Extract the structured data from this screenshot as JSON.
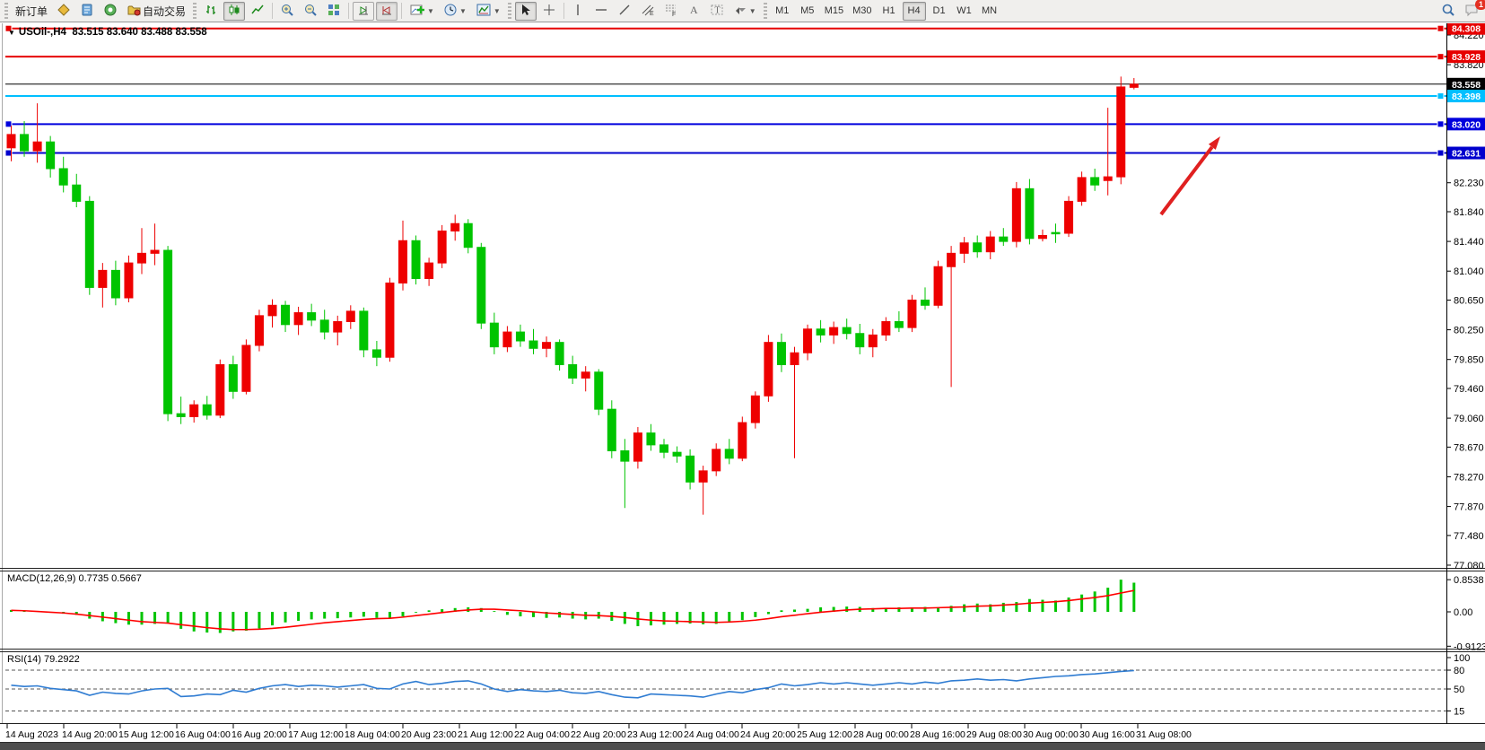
{
  "toolbar": {
    "new_order_label": "新订单",
    "autotrading_label": "自动交易",
    "timeframes": [
      "M1",
      "M5",
      "M15",
      "M30",
      "H1",
      "H4",
      "D1",
      "W1",
      "MN"
    ],
    "active_timeframe": "H4",
    "notification_count": "1"
  },
  "chart": {
    "title_symbol": "USOil-,H4",
    "title_ohlc": "83.515 83.640 83.488 83.558"
  },
  "macd_panel": {
    "label": "MACD(12,26,9) 0.7735 0.5667"
  },
  "rsi_panel": {
    "label": "RSI(14) 79.2922"
  },
  "chart_data": {
    "type": "candlestick",
    "symbol": "USOil",
    "period": "H4",
    "current_ohlc": {
      "open": 83.515,
      "high": 83.64,
      "low": 83.488,
      "close": 83.558
    },
    "up_color": "#ee0000",
    "down_color": "#00c400",
    "ylim": [
      77.08,
      84.308
    ],
    "price_axis": [
      84.22,
      83.82,
      82.23,
      81.84,
      81.44,
      81.04,
      80.65,
      80.25,
      79.85,
      79.46,
      79.06,
      78.67,
      78.27,
      77.87,
      77.48,
      77.08
    ],
    "levels": [
      {
        "price": 84.308,
        "label": "84.308",
        "color": "#e60000",
        "width": 2,
        "handle_left": true,
        "handle_right": true,
        "current": false
      },
      {
        "price": 83.928,
        "label": "83.928",
        "color": "#e60000",
        "width": 2,
        "handle_left": false,
        "handle_right": true,
        "current": false
      },
      {
        "price": 83.558,
        "label": "83.558",
        "color": "#000000",
        "width": 1,
        "handle_left": false,
        "handle_right": false,
        "current": true
      },
      {
        "price": 83.398,
        "label": "83.398",
        "color": "#00bfff",
        "width": 2,
        "handle_left": false,
        "handle_right": true,
        "current": false
      },
      {
        "price": 83.02,
        "label": "83.020",
        "color": "#0000dd",
        "width": 2,
        "handle_left": true,
        "handle_right": true,
        "current": false
      },
      {
        "price": 82.631,
        "label": "82.631",
        "color": "#0000cd",
        "width": 2,
        "handle_left": true,
        "handle_right": true,
        "current": false
      }
    ],
    "time_labels": [
      "14 Aug 2023",
      "14 Aug 20:00",
      "15 Aug 12:00",
      "16 Aug 04:00",
      "16 Aug 20:00",
      "17 Aug 12:00",
      "18 Aug 04:00",
      "20 Aug 23:00",
      "21 Aug 12:00",
      "22 Aug 04:00",
      "22 Aug 20:00",
      "23 Aug 12:00",
      "24 Aug 04:00",
      "24 Aug 20:00",
      "25 Aug 12:00",
      "28 Aug 00:00",
      "28 Aug 16:00",
      "29 Aug 08:00",
      "30 Aug 00:00",
      "30 Aug 16:00",
      "31 Aug 08:00"
    ],
    "candles": [
      [
        82.7,
        83.0,
        82.52,
        82.88
      ],
      [
        82.88,
        83.06,
        82.58,
        82.66
      ],
      [
        82.66,
        83.3,
        82.5,
        82.78
      ],
      [
        82.78,
        82.86,
        82.3,
        82.42
      ],
      [
        82.42,
        82.58,
        82.1,
        82.2
      ],
      [
        82.2,
        82.35,
        81.9,
        81.98
      ],
      [
        81.98,
        82.05,
        80.72,
        80.82
      ],
      [
        80.82,
        81.15,
        80.55,
        81.05
      ],
      [
        81.05,
        81.18,
        80.58,
        80.68
      ],
      [
        80.68,
        81.25,
        80.62,
        81.15
      ],
      [
        81.15,
        81.62,
        81.0,
        81.28
      ],
      [
        81.28,
        81.68,
        81.12,
        81.32
      ],
      [
        81.32,
        81.38,
        79.02,
        79.12
      ],
      [
        79.12,
        79.35,
        78.98,
        79.08
      ],
      [
        79.08,
        79.3,
        79.0,
        79.24
      ],
      [
        79.24,
        79.36,
        79.04,
        79.1
      ],
      [
        79.1,
        79.85,
        79.06,
        79.78
      ],
      [
        79.78,
        79.9,
        79.32,
        79.42
      ],
      [
        79.42,
        80.12,
        79.38,
        80.04
      ],
      [
        80.04,
        80.52,
        79.96,
        80.44
      ],
      [
        80.44,
        80.66,
        80.28,
        80.58
      ],
      [
        80.58,
        80.64,
        80.22,
        80.32
      ],
      [
        80.32,
        80.56,
        80.18,
        80.48
      ],
      [
        80.48,
        80.6,
        80.3,
        80.38
      ],
      [
        80.38,
        80.52,
        80.12,
        80.22
      ],
      [
        80.22,
        80.44,
        80.04,
        80.36
      ],
      [
        80.36,
        80.58,
        80.26,
        80.5
      ],
      [
        80.5,
        80.55,
        79.88,
        79.98
      ],
      [
        79.98,
        80.1,
        79.76,
        79.88
      ],
      [
        79.88,
        80.95,
        79.82,
        80.88
      ],
      [
        80.88,
        81.72,
        80.78,
        81.45
      ],
      [
        81.45,
        81.52,
        80.86,
        80.94
      ],
      [
        80.94,
        81.22,
        80.84,
        81.15
      ],
      [
        81.15,
        81.66,
        81.08,
        81.58
      ],
      [
        81.58,
        81.8,
        81.45,
        81.68
      ],
      [
        81.68,
        81.74,
        81.28,
        81.36
      ],
      [
        81.36,
        81.42,
        80.26,
        80.34
      ],
      [
        80.34,
        80.48,
        79.92,
        80.02
      ],
      [
        80.02,
        80.3,
        79.95,
        80.22
      ],
      [
        80.22,
        80.32,
        80.02,
        80.1
      ],
      [
        80.1,
        80.26,
        79.92,
        80.0
      ],
      [
        80.0,
        80.16,
        79.88,
        80.08
      ],
      [
        80.08,
        80.12,
        79.7,
        79.78
      ],
      [
        79.78,
        79.9,
        79.52,
        79.6
      ],
      [
        79.6,
        79.76,
        79.42,
        79.68
      ],
      [
        79.68,
        79.72,
        79.1,
        79.18
      ],
      [
        79.18,
        79.3,
        78.52,
        78.62
      ],
      [
        78.62,
        78.78,
        77.85,
        78.48
      ],
      [
        78.48,
        78.94,
        78.38,
        78.86
      ],
      [
        78.86,
        78.98,
        78.62,
        78.7
      ],
      [
        78.7,
        78.78,
        78.52,
        78.6
      ],
      [
        78.6,
        78.68,
        78.46,
        78.55
      ],
      [
        78.55,
        78.64,
        78.1,
        78.2
      ],
      [
        78.2,
        78.42,
        77.76,
        78.35
      ],
      [
        78.35,
        78.72,
        78.28,
        78.64
      ],
      [
        78.64,
        78.78,
        78.44,
        78.52
      ],
      [
        78.52,
        79.08,
        78.48,
        79.0
      ],
      [
        79.0,
        79.42,
        78.92,
        79.36
      ],
      [
        79.36,
        80.18,
        79.28,
        80.08
      ],
      [
        80.08,
        80.2,
        79.68,
        79.78
      ],
      [
        79.78,
        80.02,
        78.52,
        79.94
      ],
      [
        79.94,
        80.32,
        79.84,
        80.26
      ],
      [
        80.26,
        80.38,
        80.08,
        80.18
      ],
      [
        80.18,
        80.36,
        80.06,
        80.28
      ],
      [
        80.28,
        80.4,
        80.12,
        80.2
      ],
      [
        80.2,
        80.33,
        79.92,
        80.02
      ],
      [
        80.02,
        80.26,
        79.88,
        80.18
      ],
      [
        80.18,
        80.42,
        80.1,
        80.36
      ],
      [
        80.36,
        80.5,
        80.22,
        80.28
      ],
      [
        80.28,
        80.72,
        80.22,
        80.65
      ],
      [
        80.65,
        80.82,
        80.52,
        80.58
      ],
      [
        80.58,
        81.18,
        80.54,
        81.1
      ],
      [
        81.1,
        81.38,
        79.48,
        81.28
      ],
      [
        81.28,
        81.5,
        81.15,
        81.42
      ],
      [
        81.42,
        81.52,
        81.22,
        81.3
      ],
      [
        81.3,
        81.58,
        81.2,
        81.5
      ],
      [
        81.5,
        81.62,
        81.38,
        81.44
      ],
      [
        81.44,
        82.24,
        81.36,
        82.15
      ],
      [
        82.15,
        82.28,
        81.4,
        81.48
      ],
      [
        81.48,
        81.6,
        81.44,
        81.52
      ],
      [
        81.56,
        81.68,
        81.42,
        81.55
      ],
      [
        81.55,
        82.05,
        81.5,
        81.98
      ],
      [
        81.98,
        82.38,
        81.92,
        82.3
      ],
      [
        82.3,
        82.42,
        82.12,
        82.2
      ],
      [
        82.26,
        83.24,
        82.06,
        82.31
      ],
      [
        82.31,
        83.66,
        82.21,
        83.52
      ],
      [
        83.515,
        83.64,
        83.488,
        83.558
      ]
    ],
    "macd": {
      "params": "12,26,9",
      "value": 0.7735,
      "signal_value": 0.5667,
      "axis": [
        0.8538,
        0.0,
        -0.9123
      ],
      "histogram": [
        0.05,
        0.03,
        0.02,
        -0.02,
        -0.05,
        -0.08,
        -0.18,
        -0.25,
        -0.3,
        -0.34,
        -0.34,
        -0.32,
        -0.3,
        -0.45,
        -0.52,
        -0.55,
        -0.56,
        -0.52,
        -0.5,
        -0.44,
        -0.36,
        -0.28,
        -0.24,
        -0.2,
        -0.18,
        -0.17,
        -0.15,
        -0.13,
        -0.16,
        -0.18,
        -0.12,
        -0.02,
        0.04,
        0.07,
        0.1,
        0.12,
        0.1,
        0.02,
        -0.08,
        -0.12,
        -0.14,
        -0.16,
        -0.15,
        -0.18,
        -0.2,
        -0.18,
        -0.24,
        -0.32,
        -0.38,
        -0.36,
        -0.34,
        -0.32,
        -0.31,
        -0.33,
        -0.32,
        -0.26,
        -0.22,
        -0.14,
        -0.06,
        0.04,
        0.06,
        0.08,
        0.12,
        0.13,
        0.14,
        0.13,
        0.1,
        0.1,
        0.12,
        0.11,
        0.13,
        0.12,
        0.16,
        0.2,
        0.22,
        0.2,
        0.24,
        0.26,
        0.34,
        0.32,
        0.3,
        0.38,
        0.46,
        0.54,
        0.64,
        0.8538,
        0.7735
      ],
      "signal": [
        0.04,
        0.03,
        0.01,
        -0.01,
        -0.03,
        -0.06,
        -0.1,
        -0.14,
        -0.18,
        -0.22,
        -0.26,
        -0.28,
        -0.3,
        -0.34,
        -0.38,
        -0.42,
        -0.45,
        -0.47,
        -0.47,
        -0.46,
        -0.44,
        -0.41,
        -0.37,
        -0.33,
        -0.29,
        -0.26,
        -0.23,
        -0.2,
        -0.18,
        -0.17,
        -0.14,
        -0.1,
        -0.06,
        -0.02,
        0.02,
        0.05,
        0.07,
        0.07,
        0.05,
        0.03,
        0.0,
        -0.03,
        -0.05,
        -0.07,
        -0.09,
        -0.1,
        -0.12,
        -0.15,
        -0.19,
        -0.22,
        -0.24,
        -0.25,
        -0.26,
        -0.27,
        -0.28,
        -0.27,
        -0.25,
        -0.22,
        -0.18,
        -0.13,
        -0.09,
        -0.05,
        -0.01,
        0.02,
        0.05,
        0.07,
        0.08,
        0.09,
        0.09,
        0.1,
        0.1,
        0.11,
        0.12,
        0.13,
        0.15,
        0.16,
        0.18,
        0.2,
        0.23,
        0.25,
        0.27,
        0.3,
        0.34,
        0.38,
        0.43,
        0.5,
        0.5667
      ],
      "histogram_color": "#00c400",
      "signal_color": "#ff0000"
    },
    "rsi": {
      "period": 14,
      "value": 79.2922,
      "axis": [
        100,
        80,
        50,
        15
      ],
      "dashed_levels": [
        80,
        50,
        15
      ],
      "line_color": "#2f7cd2",
      "values": [
        56,
        54,
        55,
        51,
        49,
        47,
        40,
        45,
        43,
        42,
        47,
        50,
        51,
        38,
        39,
        42,
        41,
        48,
        45,
        51,
        55,
        57,
        54,
        56,
        55,
        53,
        55,
        57,
        51,
        50,
        58,
        62,
        57,
        59,
        62,
        63,
        58,
        50,
        46,
        49,
        47,
        46,
        48,
        44,
        43,
        46,
        41,
        37,
        36,
        42,
        41,
        40,
        39,
        37,
        42,
        46,
        44,
        49,
        52,
        58,
        55,
        57,
        60,
        58,
        60,
        58,
        56,
        58,
        60,
        58,
        61,
        59,
        63,
        64,
        66,
        64,
        65,
        63,
        66,
        68,
        70,
        71,
        73,
        74,
        76,
        78,
        79.29
      ]
    },
    "arrow_annotation": {
      "from": [
        1294,
        239
      ],
      "to": [
        1360,
        152
      ],
      "color": "#e02020"
    }
  }
}
